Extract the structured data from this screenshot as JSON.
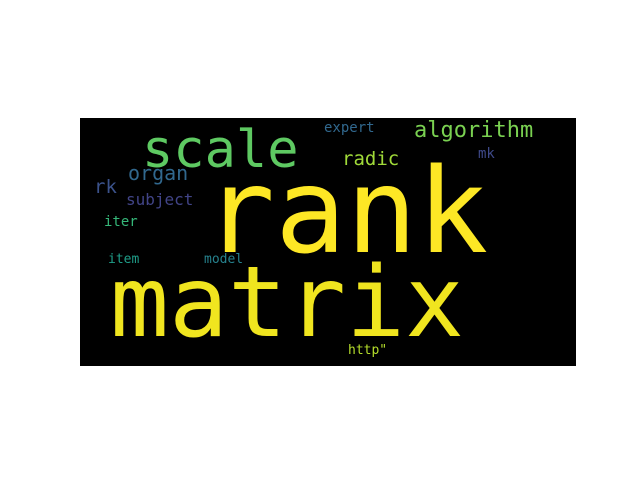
{
  "wordcloud": {
    "background_color": "#000000",
    "words": {
      "rank": "rank",
      "matrix": "matrix",
      "scale": "scale",
      "algorithm": "algorithm",
      "radic": "radic",
      "organ": "organ",
      "rk": "rk",
      "subject": "subject",
      "expert": "expert",
      "mk": "mk",
      "iter": "iter",
      "item": "item",
      "model": "model",
      "http": "http\""
    },
    "colors": {
      "rank": "#fde725",
      "matrix": "#f0e51f",
      "scale": "#5ec962",
      "algorithm": "#7ad151",
      "radic": "#a0da39",
      "organ": "#31688e",
      "rk": "#3b528b",
      "subject": "#414487",
      "expert": "#31688e",
      "mk": "#3e4989",
      "iter": "#35b779",
      "item": "#1f9e89",
      "model": "#26828e",
      "http": "#b5de2b"
    }
  }
}
